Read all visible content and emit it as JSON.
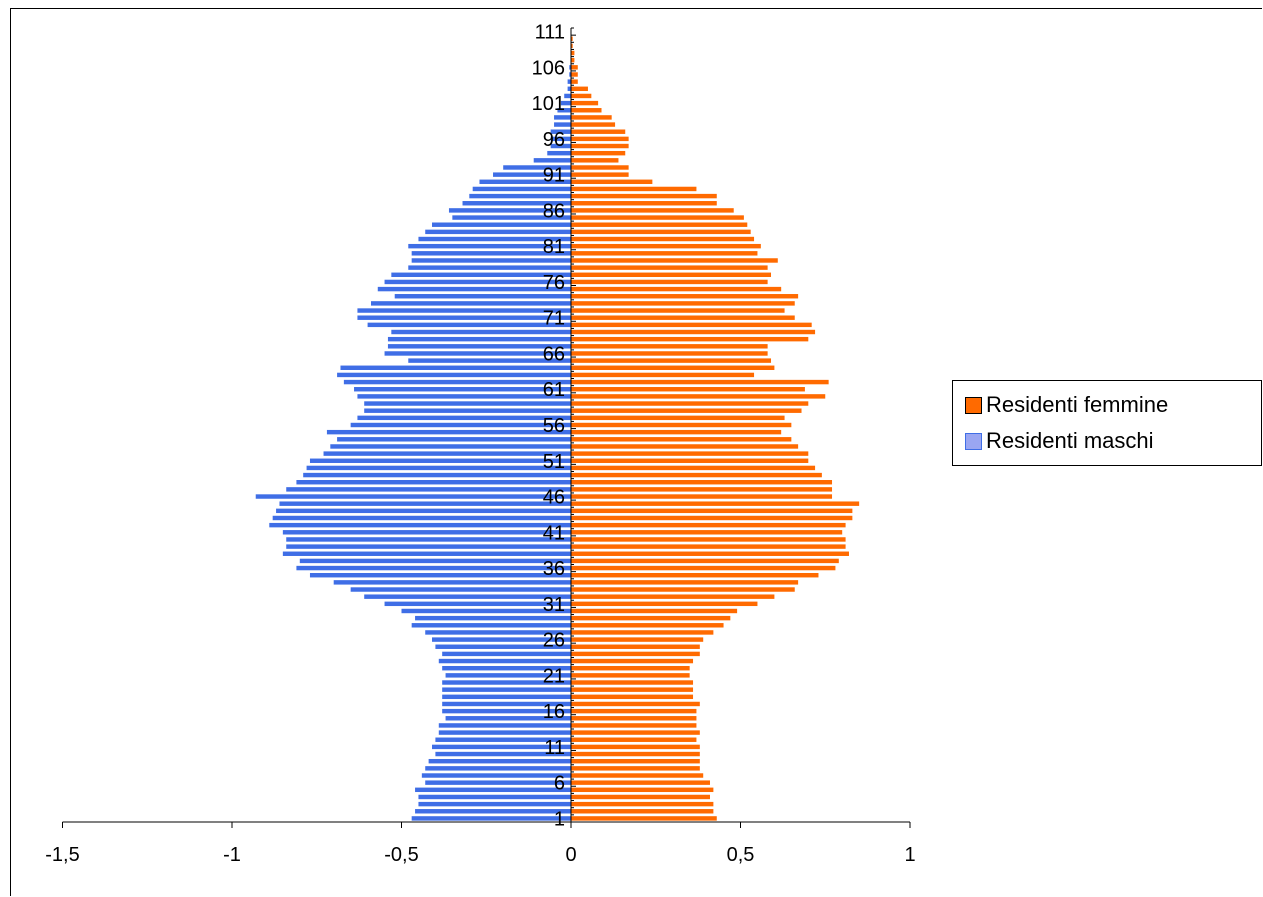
{
  "chart_data": {
    "type": "bar",
    "orientation": "horizontal",
    "y_categories_start": 1,
    "y_categories_end": 111,
    "y_tick_labels": [
      "1",
      "6",
      "11",
      "16",
      "21",
      "26",
      "31",
      "36",
      "41",
      "46",
      "51",
      "56",
      "61",
      "66",
      "71",
      "76",
      "81",
      "86",
      "91",
      "96",
      "101",
      "106",
      "111"
    ],
    "x_ticks": [
      -1.5,
      -1,
      -0.5,
      0,
      0.5,
      1
    ],
    "x_tick_labels": [
      "-1,5",
      "-1",
      "-0,5",
      "0",
      "0,5",
      "1"
    ],
    "xlim": [
      -1.5,
      1
    ],
    "grid": false,
    "legend_position": "right",
    "series": [
      {
        "name": "Residenti femmine",
        "color": "#ff6a00",
        "values": [
          0.43,
          0.42,
          0.42,
          0.41,
          0.42,
          0.41,
          0.39,
          0.38,
          0.38,
          0.38,
          0.38,
          0.37,
          0.38,
          0.37,
          0.37,
          0.37,
          0.38,
          0.36,
          0.36,
          0.36,
          0.35,
          0.35,
          0.36,
          0.38,
          0.38,
          0.39,
          0.42,
          0.45,
          0.47,
          0.49,
          0.55,
          0.6,
          0.66,
          0.67,
          0.73,
          0.78,
          0.79,
          0.82,
          0.81,
          0.81,
          0.8,
          0.81,
          0.83,
          0.83,
          0.85,
          0.77,
          0.77,
          0.77,
          0.74,
          0.72,
          0.7,
          0.7,
          0.67,
          0.65,
          0.62,
          0.65,
          0.63,
          0.68,
          0.7,
          0.75,
          0.69,
          0.76,
          0.54,
          0.6,
          0.59,
          0.58,
          0.58,
          0.7,
          0.72,
          0.71,
          0.66,
          0.63,
          0.66,
          0.67,
          0.62,
          0.58,
          0.59,
          0.58,
          0.61,
          0.55,
          0.56,
          0.54,
          0.53,
          0.52,
          0.51,
          0.48,
          0.43,
          0.43,
          0.37,
          0.24,
          0.17,
          0.17,
          0.14,
          0.16,
          0.17,
          0.17,
          0.16,
          0.13,
          0.12,
          0.09,
          0.08,
          0.06,
          0.05,
          0.02,
          0.02,
          0.02,
          0.01,
          0.01,
          0.005,
          0.005,
          0.0
        ]
      },
      {
        "name": "Residenti maschi",
        "color": "#3f6ee6",
        "values": [
          -0.47,
          -0.46,
          -0.45,
          -0.45,
          -0.46,
          -0.43,
          -0.44,
          -0.43,
          -0.42,
          -0.4,
          -0.41,
          -0.4,
          -0.39,
          -0.39,
          -0.37,
          -0.38,
          -0.38,
          -0.38,
          -0.38,
          -0.38,
          -0.37,
          -0.38,
          -0.39,
          -0.38,
          -0.4,
          -0.41,
          -0.43,
          -0.47,
          -0.46,
          -0.5,
          -0.55,
          -0.61,
          -0.65,
          -0.7,
          -0.77,
          -0.81,
          -0.8,
          -0.85,
          -0.84,
          -0.84,
          -0.85,
          -0.89,
          -0.88,
          -0.87,
          -0.86,
          -0.93,
          -0.84,
          -0.81,
          -0.79,
          -0.78,
          -0.77,
          -0.73,
          -0.71,
          -0.69,
          -0.72,
          -0.65,
          -0.63,
          -0.61,
          -0.61,
          -0.63,
          -0.64,
          -0.67,
          -0.69,
          -0.68,
          -0.48,
          -0.55,
          -0.54,
          -0.54,
          -0.53,
          -0.6,
          -0.63,
          -0.63,
          -0.59,
          -0.52,
          -0.57,
          -0.55,
          -0.53,
          -0.48,
          -0.47,
          -0.47,
          -0.48,
          -0.45,
          -0.43,
          -0.41,
          -0.35,
          -0.36,
          -0.32,
          -0.3,
          -0.29,
          -0.27,
          -0.23,
          -0.2,
          -0.11,
          -0.07,
          -0.06,
          -0.06,
          -0.06,
          -0.05,
          -0.05,
          -0.04,
          -0.03,
          -0.02,
          -0.01,
          -0.01,
          -0.005,
          -0.005,
          0,
          0,
          0,
          0,
          0
        ]
      }
    ]
  }
}
